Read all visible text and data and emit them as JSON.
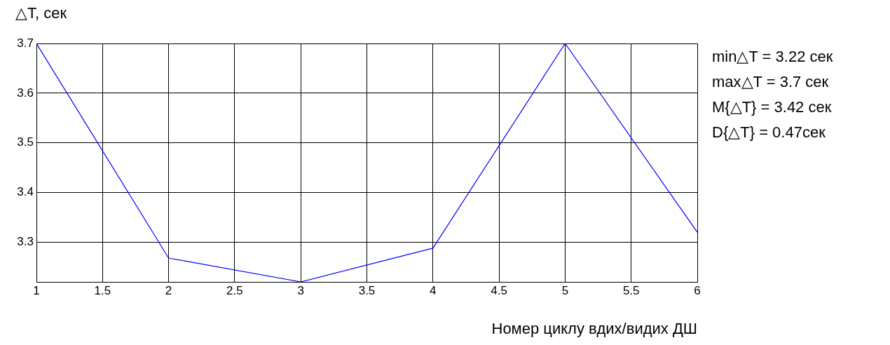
{
  "chart_data": {
    "type": "line",
    "ylabel": "△T, сек",
    "xlabel": "Номер циклу вдих/видих ДШ",
    "annotations": [
      "min△T = 3.22 сек",
      "max△T = 3.7 сек",
      "M{△T} = 3.42 сек",
      "D{△T} = 0.47сек"
    ],
    "x": [
      1,
      2,
      3,
      4,
      5,
      6
    ],
    "series": [
      {
        "color": "#0000ff",
        "values": [
          3.7,
          3.268,
          3.22,
          3.288,
          3.7,
          3.32
        ]
      }
    ],
    "xlim": [
      1,
      6
    ],
    "xticks": [
      1,
      1.5,
      2,
      2.5,
      3,
      3.5,
      4,
      4.5,
      5,
      5.5,
      6
    ],
    "ylim": [
      3.22,
      3.7
    ],
    "yticks": [
      3.3,
      3.4,
      3.5,
      3.6,
      3.7
    ],
    "grid": true,
    "marker": "none",
    "line_style": "solid"
  }
}
